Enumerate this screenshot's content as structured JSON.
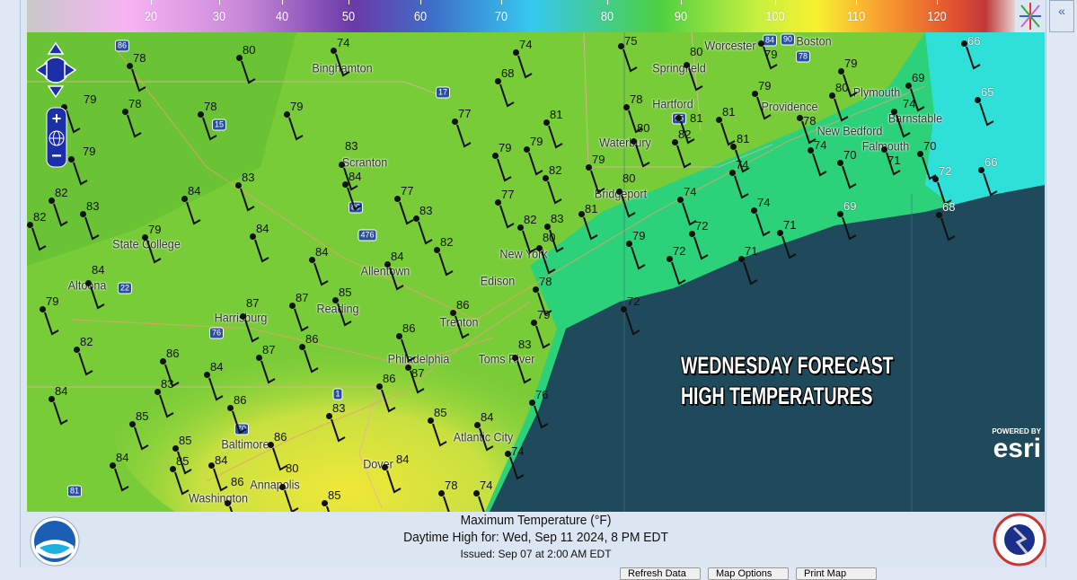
{
  "legend": {
    "title": "",
    "ticks": [
      "20",
      "30",
      "40",
      "50",
      "60",
      "70",
      "80",
      "90",
      "100",
      "110",
      "120"
    ]
  },
  "colors": {
    "ocean": "#1f4a5c",
    "land": "#7fd03a",
    "warm": "#e6e640",
    "coastal": "#2bd27a",
    "cyan": "#2fe0d8",
    "nav": "#1a2fa8"
  },
  "map": {
    "overlay_line1": "WEDNESDAY FORECAST",
    "overlay_line2": "HIGH TEMPERATURES",
    "esri_powered": "POWERED BY",
    "esri": "esri",
    "cities": [
      "Binghamton",
      "Springfield",
      "Worcester",
      "Boston",
      "Plymouth",
      "Providence",
      "Hartford",
      "Barnstable",
      "New Bedford",
      "Falmouth",
      "Waterbury",
      "Scranton",
      "Bridgeport",
      "State College",
      "New York",
      "Allentown",
      "Edison",
      "Altoona",
      "Harrisburg",
      "Reading",
      "Trenton",
      "Philadelphia",
      "Toms River",
      "Atlantic City",
      "Baltimore",
      "Dover",
      "Annapolis",
      "Washington"
    ],
    "highway_shields": [
      "86",
      "17",
      "15",
      "80",
      "476",
      "22",
      "76",
      "1",
      "70",
      "81",
      "95",
      "90",
      "84",
      "78"
    ],
    "temps": [
      "74",
      "80",
      "78",
      "74",
      "75",
      "80",
      "79",
      "66",
      "68",
      "79",
      "69",
      "65",
      "79",
      "78",
      "78",
      "79",
      "77",
      "81",
      "79",
      "80",
      "74",
      "78",
      "81",
      "81",
      "78",
      "83",
      "79",
      "79",
      "79",
      "80",
      "82",
      "81",
      "74",
      "70",
      "71",
      "70",
      "82",
      "79",
      "74",
      "66",
      "72",
      "83",
      "84",
      "84",
      "77",
      "77",
      "80",
      "74",
      "74",
      "69",
      "68",
      "82",
      "83",
      "83",
      "82",
      "83",
      "81",
      "82",
      "72",
      "71",
      "79",
      "72",
      "71",
      "84",
      "79",
      "82",
      "80",
      "84",
      "84",
      "84",
      "78",
      "85",
      "87",
      "87",
      "86",
      "72",
      "79",
      "79",
      "86",
      "86",
      "82",
      "87",
      "86",
      "84",
      "87",
      "83",
      "86",
      "84",
      "83",
      "86",
      "76",
      "83",
      "85",
      "85",
      "84",
      "74",
      "85",
      "86",
      "84",
      "85",
      "84",
      "84",
      "80",
      "78",
      "74",
      "86",
      "85"
    ]
  },
  "caption": {
    "line1": "Maximum Temperature (°F)",
    "line2": "Daytime High for: Wed, Sep 11 2024,   8 PM EDT",
    "line3": "Issued: Sep 07 at 2:00 AM EDT"
  },
  "toolbar": {
    "buttons": [
      "Refresh Data",
      "Map Options",
      "Print Map"
    ]
  },
  "panel": {
    "collapse": "«"
  }
}
